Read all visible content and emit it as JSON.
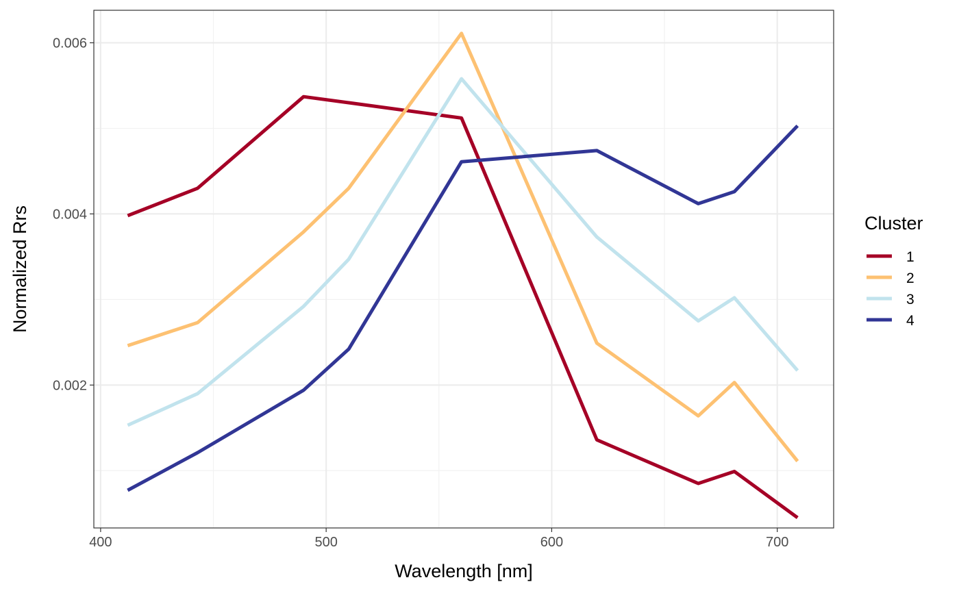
{
  "chart_data": {
    "type": "line",
    "xlabel": "Wavelength [nm]",
    "ylabel": "Normalized Rrs",
    "xlim": [
      397,
      725
    ],
    "ylim": [
      0.00033,
      0.00638
    ],
    "x_ticks": [
      400,
      500,
      600,
      700
    ],
    "x_tick_labels": [
      "400",
      "500",
      "600",
      "700"
    ],
    "x_minor_ticks": [
      450,
      550,
      650
    ],
    "y_ticks": [
      0.002,
      0.004,
      0.006
    ],
    "y_tick_labels": [
      "0.002",
      "0.004",
      "0.006"
    ],
    "y_minor_ticks": [
      0.001,
      0.003,
      0.005
    ],
    "grid": true,
    "legend": {
      "title": "Cluster",
      "position": "right"
    },
    "x": [
      412,
      443,
      490,
      510,
      560,
      620,
      665,
      681,
      709
    ],
    "series": [
      {
        "name": "1",
        "color": "#a50026",
        "values": [
          0.00398,
          0.0043,
          0.00537,
          0.0053,
          0.00512,
          0.00136,
          0.00085,
          0.00099,
          0.00045
        ]
      },
      {
        "name": "2",
        "color": "#fdc172",
        "values": [
          0.00246,
          0.00273,
          0.00379,
          0.0043,
          0.00611,
          0.00249,
          0.00164,
          0.00203,
          0.00111
        ]
      },
      {
        "name": "3",
        "color": "#c1e3ed",
        "values": [
          0.00153,
          0.0019,
          0.00292,
          0.00347,
          0.00558,
          0.00373,
          0.00275,
          0.00302,
          0.00217
        ]
      },
      {
        "name": "4",
        "color": "#313695",
        "values": [
          0.00077,
          0.00121,
          0.00194,
          0.00242,
          0.00461,
          0.00474,
          0.00412,
          0.00426,
          0.00503
        ]
      }
    ]
  }
}
